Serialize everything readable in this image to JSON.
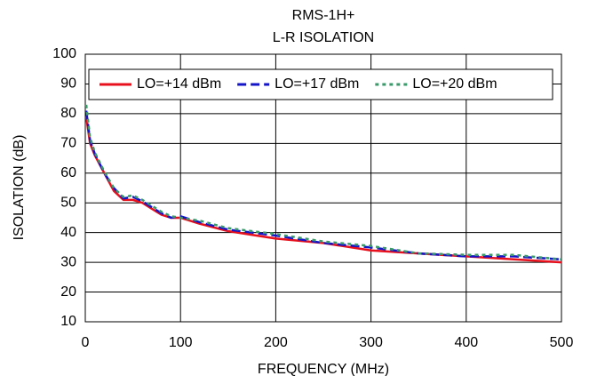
{
  "chart_data": {
    "type": "line",
    "title": "RMS-1H+",
    "subtitle": "L-R ISOLATION",
    "x_label": "FREQUENCY (MHz)",
    "y_label": "ISOLATION (dB)",
    "x": [
      1,
      5,
      10,
      20,
      30,
      40,
      50,
      60,
      70,
      80,
      90,
      100,
      120,
      150,
      200,
      250,
      300,
      350,
      400,
      450,
      500
    ],
    "series": [
      {
        "name": "LO=+14 dBm",
        "color": "#e8101c",
        "dash": "solid",
        "values": [
          79,
          70,
          66,
          60,
          54,
          51,
          51,
          50,
          48,
          46,
          45,
          45,
          43,
          40.5,
          38,
          36.5,
          34,
          33,
          32,
          31,
          30
        ]
      },
      {
        "name": "LO=+17 dBm",
        "color": "#1414c8",
        "dash": "dashed",
        "values": [
          81,
          71,
          66.5,
          60,
          55,
          51.5,
          52,
          50.5,
          48.5,
          46.5,
          45,
          45.5,
          43.5,
          41,
          39,
          36.5,
          35,
          33,
          32,
          32,
          31
        ]
      },
      {
        "name": "LO=+20 dBm",
        "color": "#3a9a6a",
        "dash": "dotted",
        "values": [
          83,
          72,
          67,
          60.5,
          55,
          52,
          52.5,
          51,
          49,
          47,
          45.5,
          45,
          44,
          41.5,
          39.5,
          37,
          35.5,
          33,
          32.5,
          32.5,
          31
        ]
      }
    ],
    "xlim": [
      0,
      500
    ],
    "xticks": [
      0,
      100,
      200,
      300,
      400,
      500
    ],
    "ylim": [
      10,
      100
    ],
    "yticks": [
      10,
      20,
      30,
      40,
      50,
      60,
      70,
      80,
      90,
      100
    ],
    "grid": true,
    "legend": "top"
  }
}
